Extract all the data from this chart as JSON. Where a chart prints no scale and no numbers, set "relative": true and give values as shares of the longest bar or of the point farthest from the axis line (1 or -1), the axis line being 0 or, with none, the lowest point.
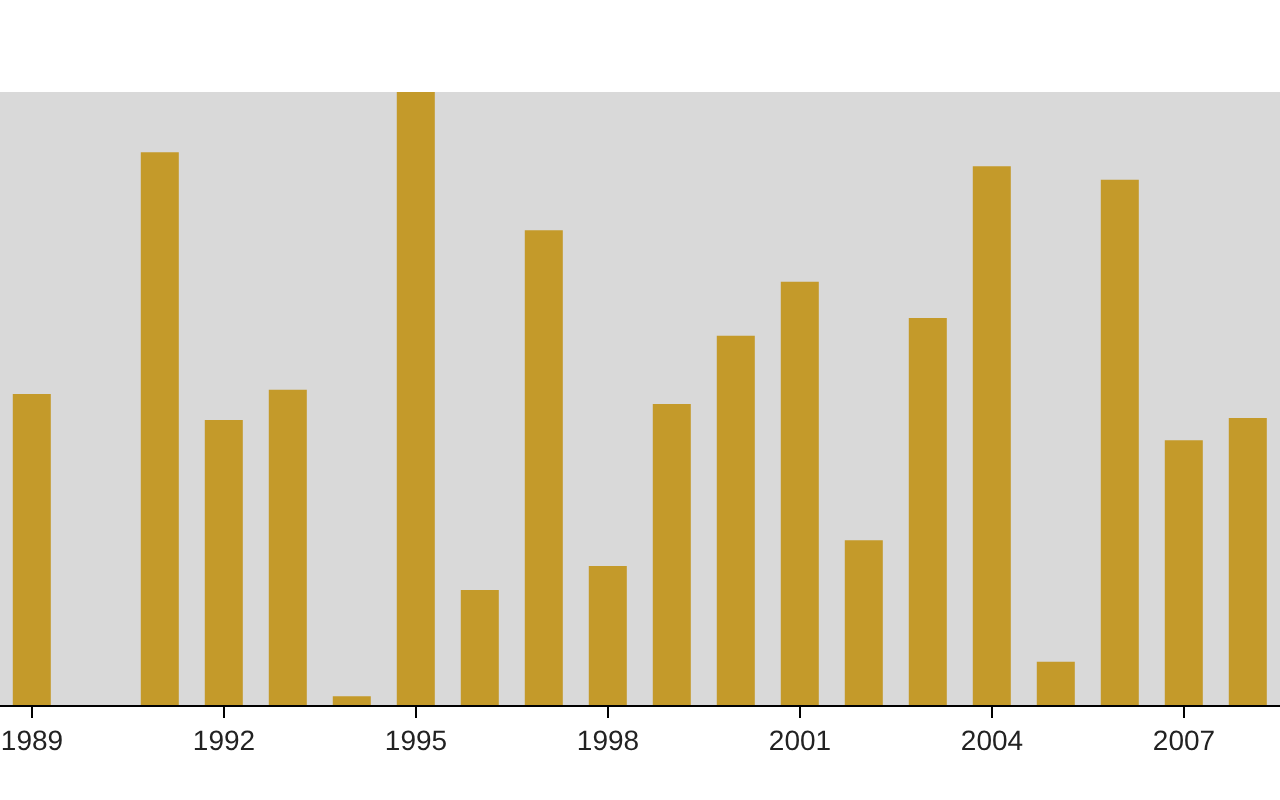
{
  "chart_data": {
    "type": "bar",
    "relative": true,
    "color": "#c49a2a",
    "categories": [
      "1989",
      null,
      null,
      "1992",
      null,
      null,
      "1995",
      null,
      null,
      "1998",
      null,
      null,
      "2001",
      null,
      null,
      "2004",
      null,
      null,
      "2007",
      null
    ],
    "values": [
      0.508,
      0,
      0.902,
      0.466,
      0.515,
      0.016,
      1,
      0.189,
      0.775,
      0.228,
      0.492,
      0.603,
      0.691,
      0.27,
      0.632,
      0.879,
      0.072,
      0.857,
      0.433,
      0.469
    ],
    "grid": false
  }
}
